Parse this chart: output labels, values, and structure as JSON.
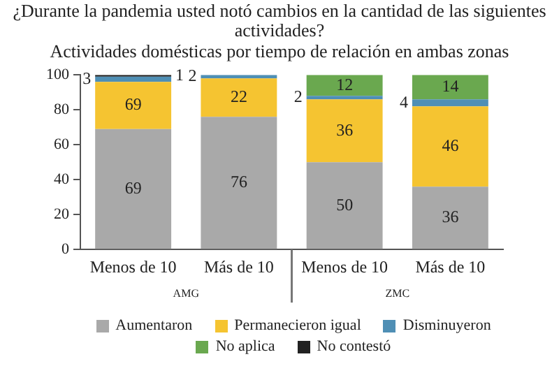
{
  "chart_data": {
    "type": "bar",
    "stacked": true,
    "title": "¿Durante la pandemia usted notó cambios en la cantidad de las siguientes actividades?",
    "subtitle": "Actividades domésticas por tiempo de relación en ambas zonas",
    "categories": [
      "Menos de 10",
      "Más de 10",
      "Menos de 10",
      "Más de 10"
    ],
    "annotations": [
      "AMG",
      "ZMC",
      "69"
    ],
    "series": [
      {
        "name": "Aumentaron",
        "color": "#a9a9a9",
        "values": [
          69,
          76,
          50,
          36
        ],
        "value_labels": [
          "69",
          "76",
          "50",
          "36"
        ]
      },
      {
        "name": "Permanecieron igual",
        "color": "#f5c431",
        "values": [
          27,
          22,
          36,
          46
        ],
        "value_labels": [
          null,
          "22",
          "36",
          "46"
        ]
      },
      {
        "name": "Disminuyeron",
        "color": "#4f8fb5",
        "values": [
          3,
          2,
          2,
          4
        ],
        "value_labels": [
          "3",
          "2",
          "2",
          "4"
        ]
      },
      {
        "name": "No aplica",
        "color": "#6aa84f",
        "values": [
          0,
          0,
          12,
          14
        ],
        "value_labels": [
          null,
          null,
          "12",
          "14"
        ]
      },
      {
        "name": "No contestó",
        "color": "#222222",
        "values": [
          1,
          0,
          0,
          0
        ],
        "value_labels": [
          "1",
          null,
          null,
          null
        ]
      }
    ],
    "ylim": [
      0,
      100
    ],
    "yticks": [
      0,
      20,
      40,
      60,
      80,
      100
    ],
    "grid": false,
    "legend": "bottom"
  }
}
